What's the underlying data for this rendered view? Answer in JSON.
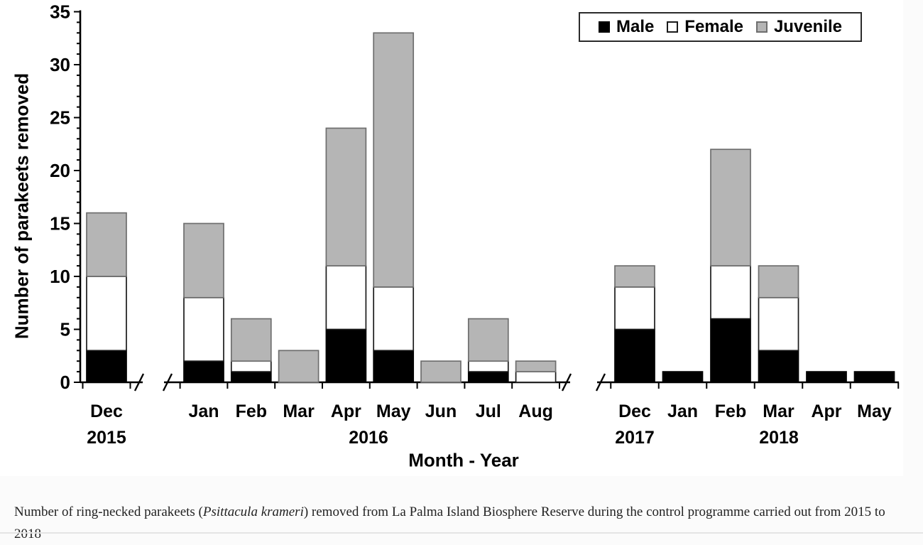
{
  "figure": {
    "y_axis": {
      "title": "Number of parakeets removed",
      "min": 0,
      "max": 35,
      "major_step": 5,
      "minor_step": 1,
      "major_tick_labels": [
        "0",
        "5",
        "10",
        "15",
        "20",
        "25",
        "30",
        "35"
      ]
    },
    "x_axis": {
      "title": "Month - Year",
      "year_labels": [
        "2015",
        "2016",
        "2017",
        "2018"
      ]
    },
    "legend": {
      "items": [
        {
          "label": "Male",
          "fill": "#000000",
          "border": "#000000"
        },
        {
          "label": "Female",
          "fill": "#ffffff",
          "border": "#1a1a1a"
        },
        {
          "label": "Juvenile",
          "fill": "#b5b5b5",
          "border": "#6e6e6e"
        }
      ]
    }
  },
  "chart_data": {
    "type": "bar",
    "stacked": true,
    "title": "",
    "xlabel": "Month - Year",
    "ylabel": "Number of parakeets removed",
    "ylim": [
      0,
      35
    ],
    "ytick_major": 5,
    "ytick_minor": 1,
    "grid": false,
    "legend_position": "top-right",
    "axis_breaks_after_categories": [
      "Dec 2015",
      "Aug 2016"
    ],
    "categories": [
      "Dec 2015",
      "Jan 2016",
      "Feb 2016",
      "Mar 2016",
      "Apr 2016",
      "May 2016",
      "Jun 2016",
      "Jul 2016",
      "Aug 2016",
      "Dec 2017",
      "Jan 2018",
      "Feb 2018",
      "Mar 2018",
      "Apr 2018",
      "May 2018"
    ],
    "month_labels": [
      "Dec",
      "Jan",
      "Feb",
      "Mar",
      "Apr",
      "May",
      "Jun",
      "Jul",
      "Aug",
      "Dec",
      "Jan",
      "Feb",
      "Mar",
      "Apr",
      "May"
    ],
    "series": [
      {
        "name": "Male",
        "color": "#000000",
        "values": [
          3,
          2,
          1,
          0,
          5,
          3,
          0,
          1,
          0,
          5,
          1,
          6,
          3,
          1,
          1
        ]
      },
      {
        "name": "Female",
        "color": "#ffffff",
        "values": [
          7,
          6,
          1,
          0,
          6,
          6,
          0,
          1,
          1,
          4,
          0,
          5,
          5,
          0,
          0
        ]
      },
      {
        "name": "Juvenile",
        "color": "#b5b5b5",
        "values": [
          6,
          7,
          4,
          3,
          13,
          24,
          2,
          4,
          1,
          2,
          0,
          11,
          3,
          0,
          0
        ]
      }
    ],
    "totals": [
      16,
      15,
      6,
      3,
      24,
      33,
      2,
      6,
      2,
      11,
      1,
      22,
      11,
      1,
      1
    ],
    "year_groups": [
      {
        "year": "2015",
        "categories": [
          "Dec 2015"
        ]
      },
      {
        "year": "2016",
        "categories": [
          "Jan 2016",
          "Feb 2016",
          "Mar 2016",
          "Apr 2016",
          "May 2016",
          "Jun 2016",
          "Jul 2016",
          "Aug 2016"
        ]
      },
      {
        "year": "2017",
        "categories": [
          "Dec 2017"
        ]
      },
      {
        "year": "2018",
        "categories": [
          "Jan 2018",
          "Feb 2018",
          "Mar 2018",
          "Apr 2018",
          "May 2018"
        ]
      }
    ]
  },
  "caption": {
    "part1": "Number of ring-necked parakeets (",
    "species": "Psittacula krameri",
    "part2": ") removed from La Palma Island Biosphere Reserve during the control programme carried out from 2015 to 2018"
  }
}
